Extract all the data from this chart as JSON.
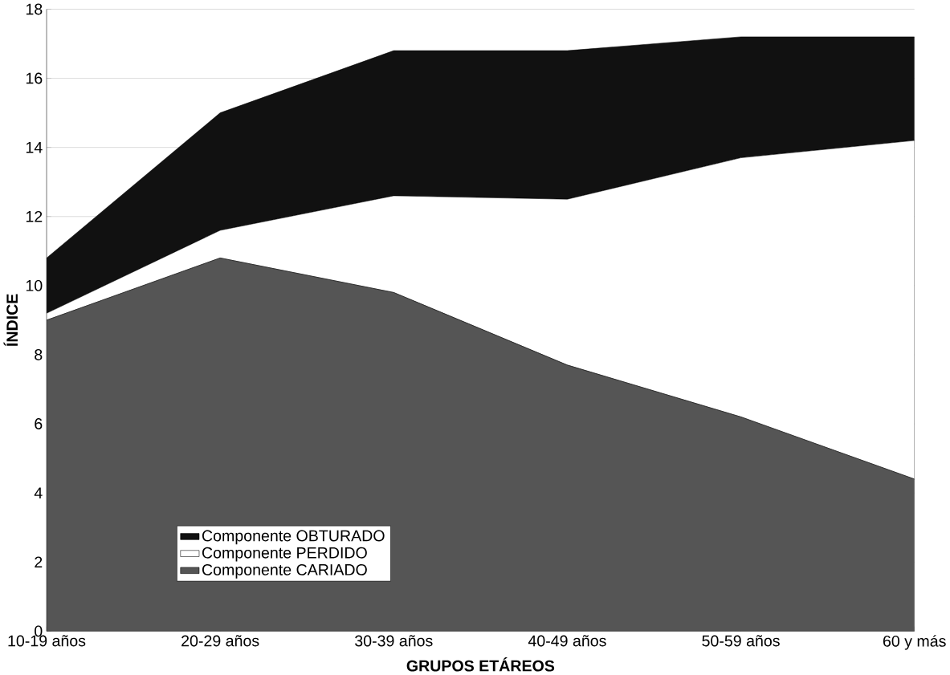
{
  "chart_data": {
    "type": "area",
    "xlabel": "GRUPOS ETÁREOS",
    "ylabel": "ÍNDICE",
    "categories": [
      "10-19 años",
      "20-29 años",
      "30-39 años",
      "40-49 años",
      "50-59 años",
      "60 y más"
    ],
    "stacked": true,
    "ylim": [
      0,
      18
    ],
    "yticks": [
      0,
      2,
      4,
      6,
      8,
      10,
      12,
      14,
      16,
      18
    ],
    "grid": "y",
    "legend": "bottom left",
    "series": [
      {
        "name": "Componente CARIADO",
        "color": "#555555",
        "values": [
          9.0,
          10.8,
          9.8,
          7.7,
          6.2,
          4.4
        ]
      },
      {
        "name": "Componente PERDIDO",
        "color": "#ffffff",
        "values": [
          0.2,
          0.8,
          2.8,
          4.8,
          7.5,
          9.8
        ]
      },
      {
        "name": "Componente OBTURADO",
        "color": "#111111",
        "values": [
          1.6,
          3.4,
          4.2,
          4.3,
          3.5,
          3.0
        ]
      }
    ]
  }
}
